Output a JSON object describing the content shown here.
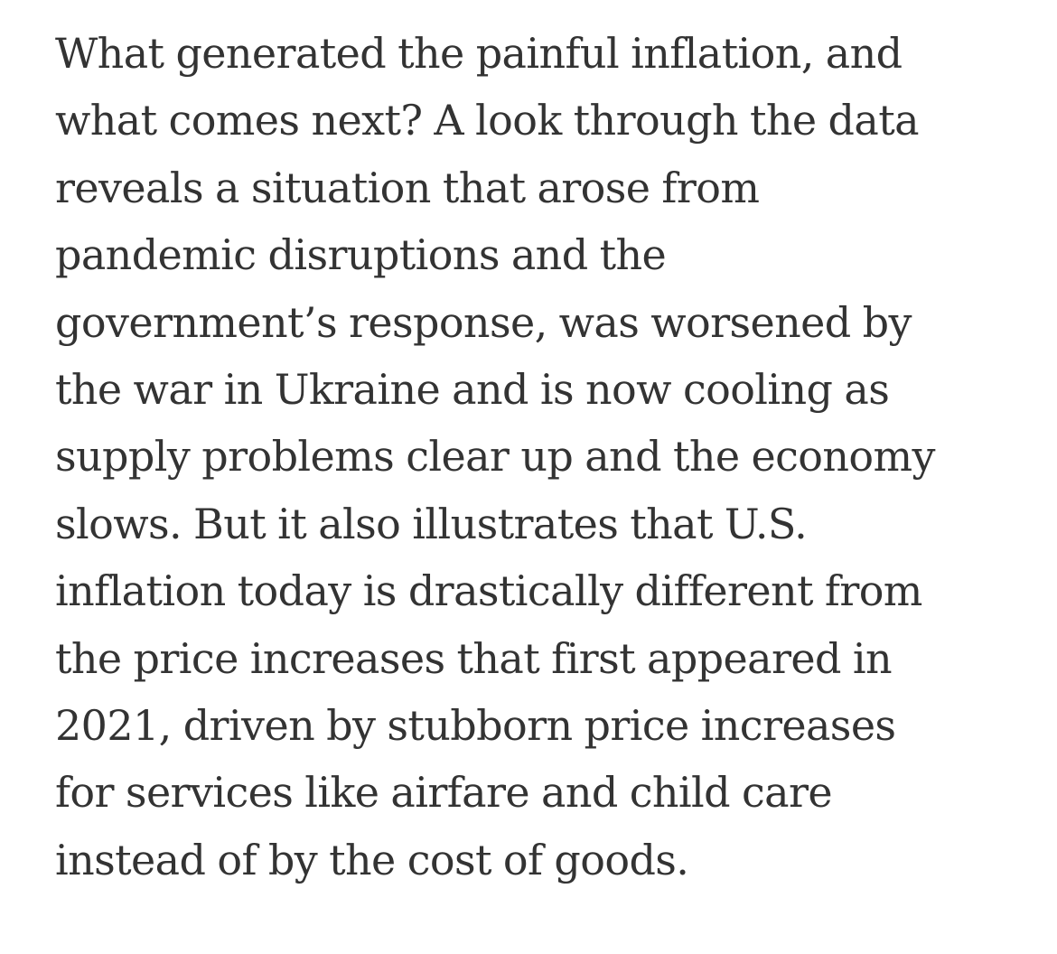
{
  "article": {
    "lines": [
      "What generated the painful inflation, and",
      "what comes next? A look through the data",
      "reveals a situation that arose from",
      "pandemic disruptions and the",
      "government’s response, was worsened by",
      "the war in Ukraine and is now cooling as",
      "supply problems clear up and the economy",
      "slows. But it also illustrates that U.S.",
      "inflation today is drastically different from",
      "the price increases that first appeared in",
      "2021, driven by stubborn price increases",
      "for services like airfare and child care",
      "instead of by the cost of goods."
    ]
  },
  "colors": {
    "text": "#333333",
    "background": "#ffffff"
  }
}
